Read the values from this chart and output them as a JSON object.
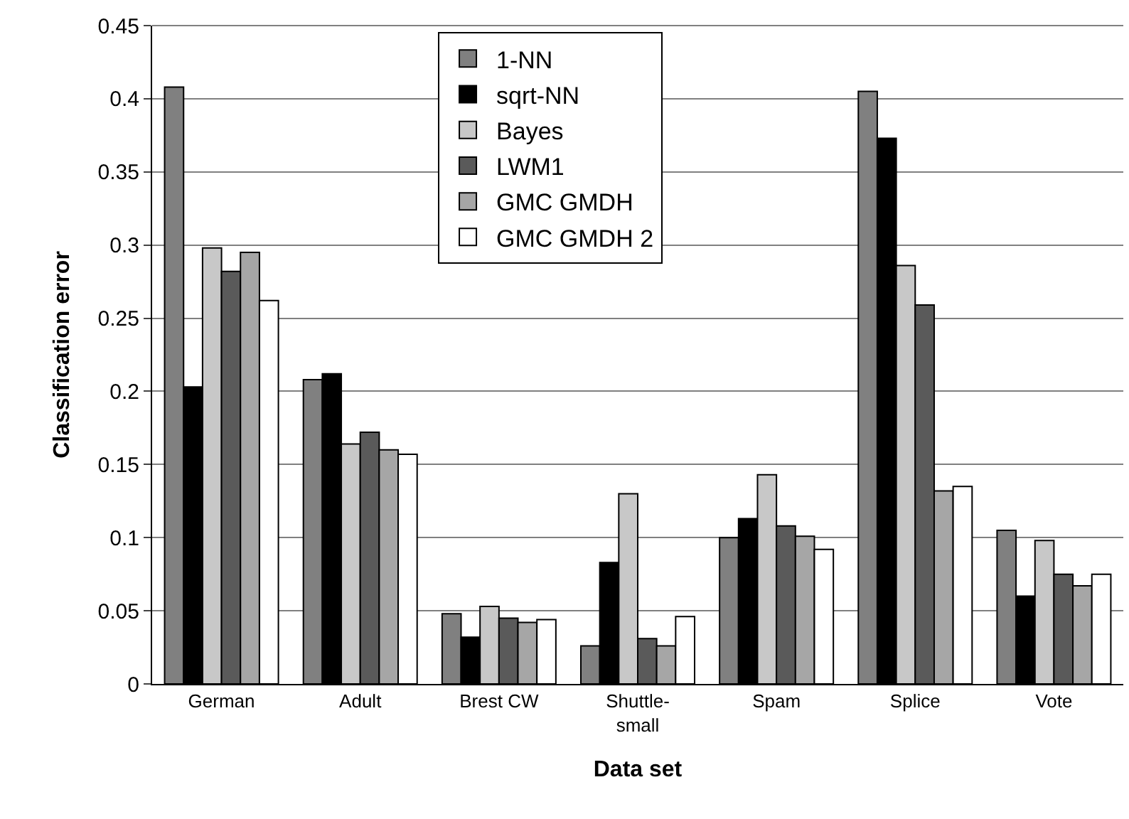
{
  "chart_data": {
    "type": "bar",
    "xlabel": "Data set",
    "ylabel": "Classification error",
    "categories": [
      "German",
      "Adult",
      "Brest CW",
      "Shuttle-small",
      "Spam",
      "Splice",
      "Vote"
    ],
    "series": [
      {
        "name": "1-NN",
        "color": "#808080",
        "values": [
          0.408,
          0.208,
          0.048,
          0.026,
          0.1,
          0.405,
          0.105
        ]
      },
      {
        "name": "sqrt-NN",
        "color": "#000000",
        "values": [
          0.203,
          0.212,
          0.032,
          0.083,
          0.113,
          0.373,
          0.06
        ]
      },
      {
        "name": "Bayes",
        "color": "#c8c8c8",
        "values": [
          0.298,
          0.164,
          0.053,
          0.13,
          0.143,
          0.286,
          0.098
        ]
      },
      {
        "name": "LWM1",
        "color": "#5a5a5a",
        "values": [
          0.282,
          0.172,
          0.045,
          0.031,
          0.108,
          0.259,
          0.075
        ]
      },
      {
        "name": "GMC GMDH",
        "color": "#a6a6a6",
        "values": [
          0.295,
          0.16,
          0.042,
          0.026,
          0.101,
          0.132,
          0.067
        ]
      },
      {
        "name": "GMC GMDH 2",
        "color": "#ffffff",
        "values": [
          0.262,
          0.157,
          0.044,
          0.046,
          0.092,
          0.135,
          0.075
        ]
      }
    ],
    "ylim": [
      0,
      0.45
    ],
    "yticks": [
      0,
      0.05,
      0.1,
      0.15,
      0.2,
      0.25,
      0.3,
      0.35,
      0.4,
      0.45
    ],
    "grid": "y",
    "legend": "top"
  }
}
